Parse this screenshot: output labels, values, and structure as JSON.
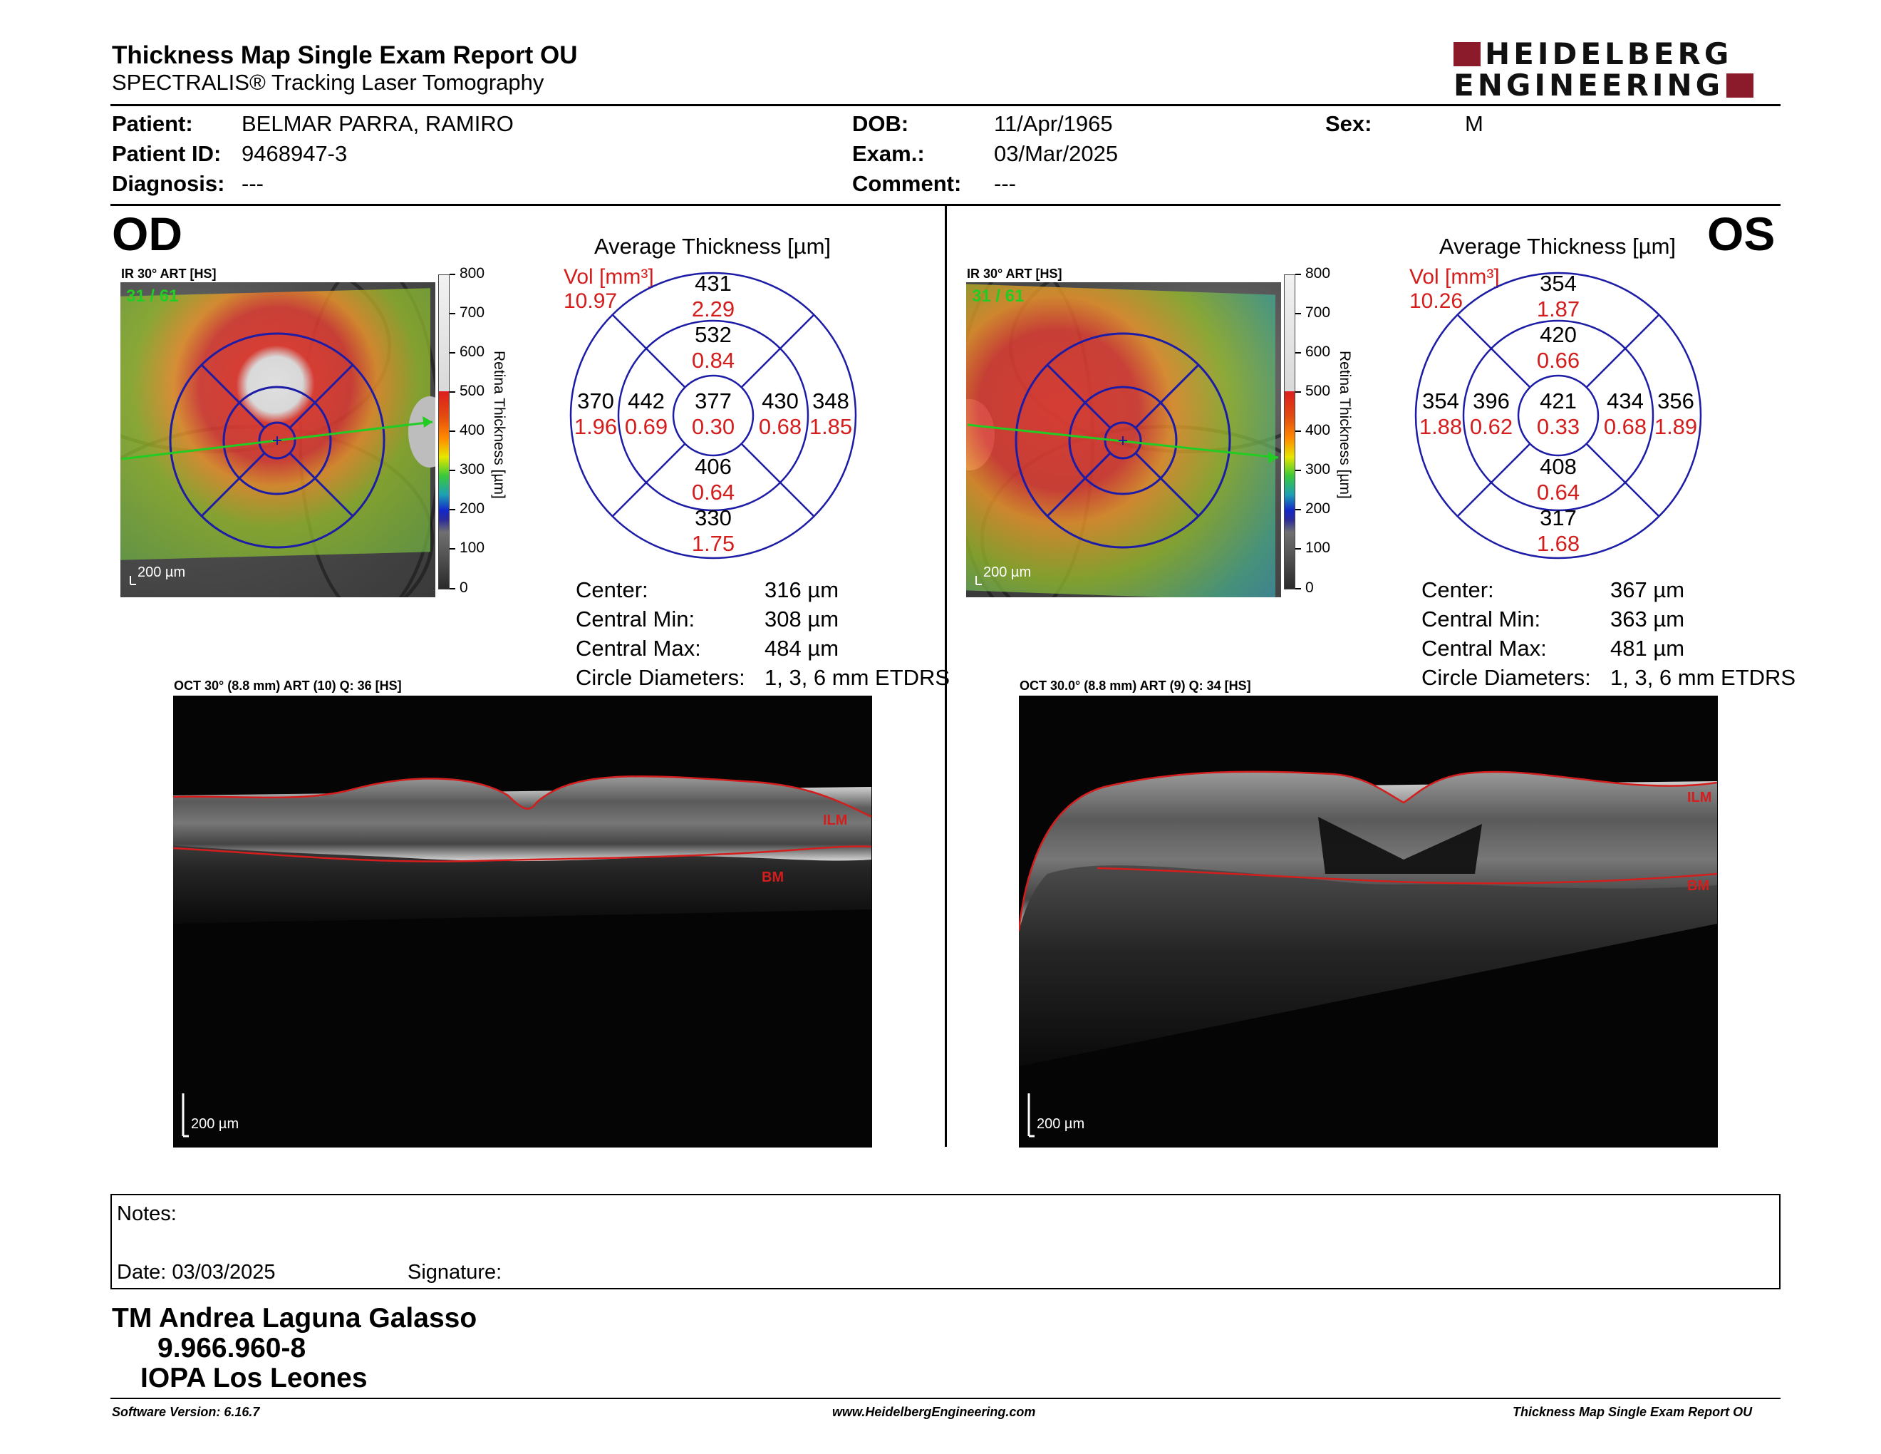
{
  "header": {
    "title": "Thickness Map Single Exam Report OU",
    "subtitle": "SPECTRALIS® Tracking Laser Tomography",
    "logo_line1": "HEIDELBERG",
    "logo_line2": "ENGINEERING",
    "brand_color": "#8b1a2b"
  },
  "patient": {
    "patient_label": "Patient:",
    "patient_value": "BELMAR PARRA, RAMIRO",
    "id_label": "Patient ID:",
    "id_value": "9468947-3",
    "diagnosis_label": "Diagnosis:",
    "diagnosis_value": "---",
    "dob_label": "DOB:",
    "dob_value": "11/Apr/1965",
    "exam_label": "Exam.:",
    "exam_value": "03/Mar/2025",
    "comment_label": "Comment:",
    "comment_value": "---",
    "sex_label": "Sex:",
    "sex_value": "M"
  },
  "colorbar": {
    "ticks": [
      "800",
      "700",
      "600",
      "500",
      "400",
      "300",
      "200",
      "100",
      "0"
    ],
    "title": "Retina Thickness [µm]"
  },
  "od": {
    "eye": "OD",
    "fundus_label": "IR 30° ART [HS]",
    "frames": "31 / 61",
    "fundus_scale": "200 µm",
    "avg_title": "Average Thickness [µm]",
    "vol_label": "Vol [mm³]",
    "vol_total": "10.97",
    "grid": {
      "center": {
        "t": "377",
        "v": "0.30"
      },
      "inner_superior": {
        "t": "532",
        "v": "0.84"
      },
      "inner_temporal": {
        "t": "442",
        "v": "0.69"
      },
      "inner_nasal": {
        "t": "430",
        "v": "0.68"
      },
      "inner_inferior": {
        "t": "406",
        "v": "0.64"
      },
      "outer_superior": {
        "t": "431",
        "v": "2.29"
      },
      "outer_temporal": {
        "t": "370",
        "v": "1.96"
      },
      "outer_nasal": {
        "t": "348",
        "v": "1.85"
      },
      "outer_inferior": {
        "t": "330",
        "v": "1.75"
      }
    },
    "stats": {
      "center_label": "Center:",
      "center_value": "316 µm",
      "min_label": "Central Min:",
      "min_value": "308 µm",
      "max_label": "Central Max:",
      "max_value": "484 µm",
      "diam_label": "Circle Diameters:",
      "diam_value": "1, 3, 6 mm ETDRS"
    },
    "oct_label": "OCT 30° (8.8 mm) ART (10) Q: 36 [HS]",
    "oct_scale": "200 µm",
    "ilm": "ILM",
    "bm": "BM"
  },
  "os": {
    "eye": "OS",
    "fundus_label": "IR 30° ART [HS]",
    "frames": "31 / 61",
    "fundus_scale": "200 µm",
    "avg_title": "Average Thickness [µm]",
    "vol_label": "Vol [mm³]",
    "vol_total": "10.26",
    "grid": {
      "center": {
        "t": "421",
        "v": "0.33"
      },
      "inner_superior": {
        "t": "420",
        "v": "0.66"
      },
      "inner_temporal": {
        "t": "434",
        "v": "0.68"
      },
      "inner_nasal": {
        "t": "396",
        "v": "0.62"
      },
      "inner_inferior": {
        "t": "408",
        "v": "0.64"
      },
      "outer_superior": {
        "t": "354",
        "v": "1.87"
      },
      "outer_temporal": {
        "t": "356",
        "v": "1.89"
      },
      "outer_nasal": {
        "t": "354",
        "v": "1.88"
      },
      "outer_inferior": {
        "t": "317",
        "v": "1.68"
      }
    },
    "stats": {
      "center_label": "Center:",
      "center_value": "367 µm",
      "min_label": "Central Min:",
      "min_value": "363 µm",
      "max_label": "Central Max:",
      "max_value": "481 µm",
      "diam_label": "Circle Diameters:",
      "diam_value": "1, 3, 6 mm ETDRS"
    },
    "oct_label": "OCT 30.0° (8.8 mm) ART (9) Q: 34 [HS]",
    "oct_scale": "200 µm",
    "ilm": "ILM",
    "bm": "BM"
  },
  "notes": {
    "notes_label": "Notes:",
    "date_label": "Date: 03/03/2025",
    "signature_label": "Signature:"
  },
  "technician": {
    "name": "TM Andrea Laguna Galasso",
    "id": "9.966.960-8",
    "org": "IOPA Los Leones"
  },
  "footer": {
    "software": "Software Version: 6.16.7",
    "website": "www.HeidelbergEngineering.com",
    "report": "Thickness Map Single Exam Report OU"
  },
  "colors": {
    "accent_red": "#d41d1d",
    "grid_blue": "#1c1ca6",
    "scan_green": "#22cc22"
  }
}
